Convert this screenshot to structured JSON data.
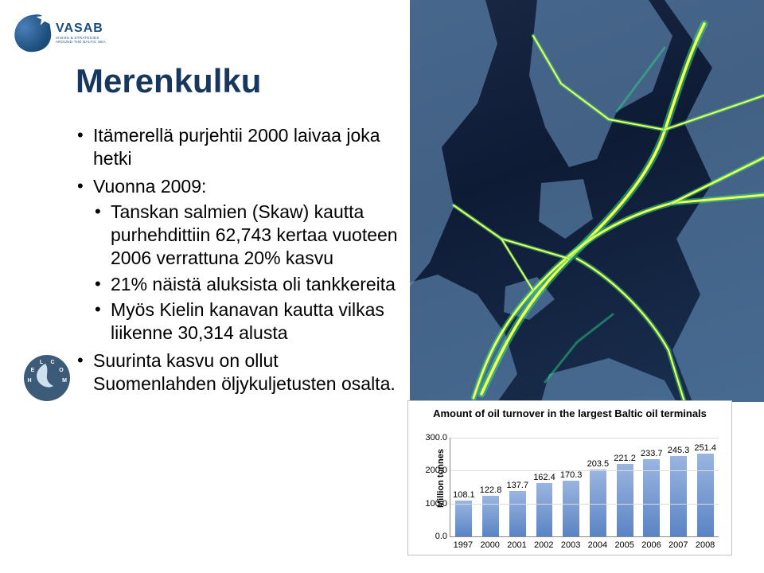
{
  "logo": {
    "brand": "VASAB",
    "tagline1": "VISION & STRATEGIES",
    "tagline2": "AROUND THE BALTIC SEA"
  },
  "title": "Merenkulku",
  "bullets": [
    {
      "text": "Itämerellä purjehtii 2000 laivaa joka hetki"
    },
    {
      "text": "Vuonna 2009:",
      "children": [
        "Tanskan salmien (Skaw) kautta purhehdittiin 62,743 kertaa vuoteen 2006 verrattuna 20% kasvu",
        "21% näistä aluksista oli tankkereita",
        "Myös Kielin kanavan kautta vilkas liikenne 30,314 alusta"
      ]
    },
    {
      "text": "Suurinta kasvu on ollut Suomenlahden öljykuljetusten osalta."
    }
  ],
  "helcom": {
    "letters": [
      "H",
      "E",
      "L",
      "C",
      "O",
      "M"
    ],
    "bg": "#3b5b78"
  },
  "chart": {
    "title": "Amount of oil turnover in the largest Baltic oil terminals",
    "ylabel": "Million tonnes",
    "ymax": 300,
    "ytick_step": 100,
    "yticks": [
      "0.0",
      "100.0",
      "200.0",
      "300.0"
    ],
    "categories": [
      "1997",
      "2000",
      "2001",
      "2002",
      "2003",
      "2004",
      "2005",
      "2006",
      "2007",
      "2008"
    ],
    "values": [
      108.1,
      122.8,
      137.7,
      162.4,
      170.3,
      203.5,
      221.2,
      233.7,
      245.3,
      251.4
    ],
    "bar_fill_top": "#9ab5e0",
    "bar_fill_bottom": "#5b84c4",
    "grid_color": "#dddddd",
    "axis_color": "#888888",
    "title_fontsize": 13,
    "label_fontsize": 11
  },
  "map": {
    "bg_from": "#1a2845",
    "bg_to": "#1a3050",
    "land": "#6e9bc7",
    "traffic_hi": "#f6ff4d",
    "traffic_lo": "#2fdc8a"
  }
}
